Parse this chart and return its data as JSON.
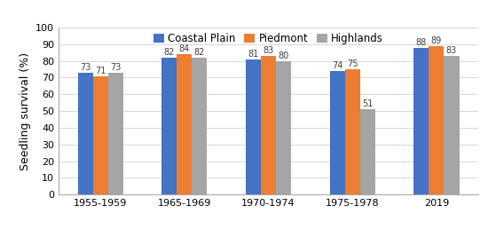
{
  "categories": [
    "1955-1959",
    "1965-1969",
    "1970-1974",
    "1975-1978",
    "2019"
  ],
  "series": {
    "Coastal Plain": [
      73,
      82,
      81,
      74,
      88
    ],
    "Piedmont": [
      71,
      84,
      83,
      75,
      89
    ],
    "Highlands": [
      73,
      82,
      80,
      51,
      83
    ]
  },
  "colors": {
    "Coastal Plain": "#4472C4",
    "Piedmont": "#ED7D31",
    "Highlands": "#A5A5A5"
  },
  "ylabel": "Seedling survival (%)",
  "ylim": [
    0,
    100
  ],
  "yticks": [
    0,
    10,
    20,
    30,
    40,
    50,
    60,
    70,
    80,
    90,
    100
  ],
  "bar_width": 0.18,
  "legend_labels": [
    "Coastal Plain",
    "Piedmont",
    "Highlands"
  ],
  "label_fontsize": 7,
  "tick_fontsize": 8,
  "ylabel_fontsize": 9,
  "legend_fontsize": 8.5,
  "background_color": "#ffffff"
}
